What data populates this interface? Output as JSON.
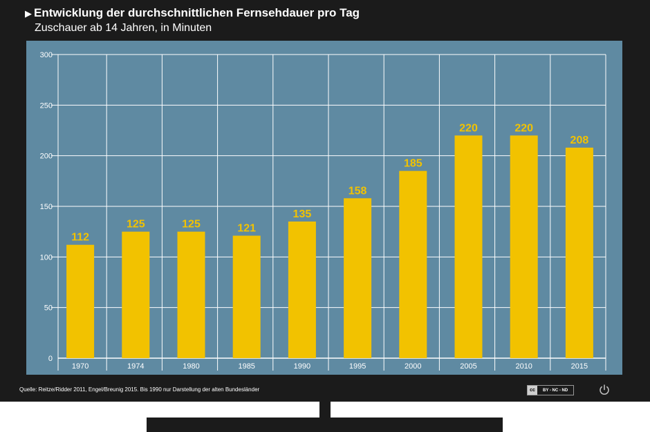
{
  "header": {
    "arrow": "▶",
    "title": "Entwicklung der durchschnittlichen Fernsehdauer pro Tag",
    "subtitle": "Zuschauer ab 14 Jahren, in Minuten"
  },
  "footer": {
    "source": "Quelle: Reitze/Ridder 2011, Engel/Breunig 2015. Bis 1990 nur Darstellung der alten Bundesländer",
    "license_logo": "cc",
    "license_text": "BY - NC - ND",
    "power_icon": "power-icon"
  },
  "colors": {
    "bar": "#f2c200",
    "value_label": "#f2c200",
    "screen": "#5f8aa2",
    "frame": "#1b1b1b",
    "grid": "#ffffff"
  },
  "chart_data": {
    "type": "bar",
    "title": "Entwicklung der durchschnittlichen Fernsehdauer pro Tag",
    "subtitle": "Zuschauer ab 14 Jahren, in Minuten",
    "categories": [
      "1970",
      "1974",
      "1980",
      "1985",
      "1990",
      "1995",
      "2000",
      "2005",
      "2010",
      "2015"
    ],
    "values": [
      112,
      125,
      125,
      121,
      135,
      158,
      185,
      220,
      220,
      208
    ],
    "ylim": [
      0,
      300
    ],
    "yticks": [
      0,
      50,
      100,
      150,
      200,
      250,
      300
    ],
    "grid": true,
    "data_labels": true
  }
}
